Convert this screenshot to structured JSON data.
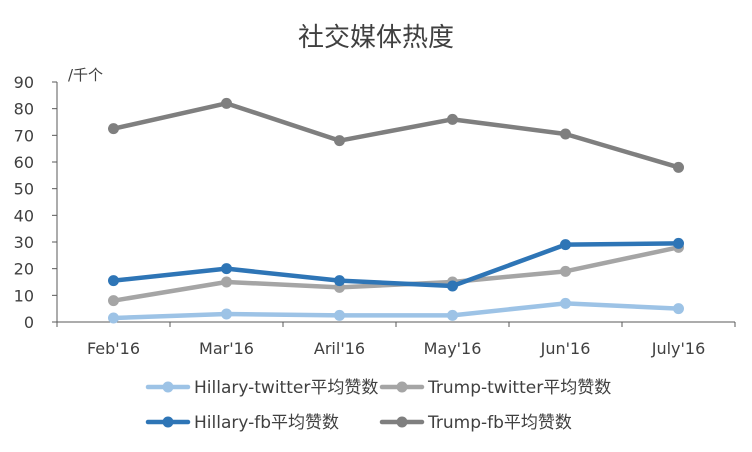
{
  "chart_data": {
    "type": "line",
    "title": "社交媒体热度",
    "unit_label": "/千个",
    "categories": [
      "Feb'16",
      "Mar'16",
      "Aril'16",
      "May'16",
      "Jun'16",
      "July'16"
    ],
    "ylim": [
      0,
      90
    ],
    "yticks": [
      0,
      10,
      20,
      30,
      40,
      50,
      60,
      70,
      80,
      90
    ],
    "grid": false,
    "legend_position": "bottom",
    "series": [
      {
        "name": "Hillary-twitter平均赞数",
        "color": "#9DC3E6",
        "values": [
          1.5,
          3,
          2.5,
          2.5,
          7,
          5
        ]
      },
      {
        "name": "Trump-twitter平均赞数",
        "color": "#A5A5A5",
        "values": [
          8,
          15,
          13,
          15,
          19,
          28
        ]
      },
      {
        "name": "Hillary-fb平均赞数",
        "color": "#2E75B6",
        "values": [
          15.5,
          20,
          15.5,
          13.5,
          29,
          29.5
        ]
      },
      {
        "name": "Trump-fb平均赞数",
        "color": "#7F7F7F",
        "values": [
          72.5,
          82,
          68,
          76,
          70.5,
          58
        ]
      }
    ]
  }
}
